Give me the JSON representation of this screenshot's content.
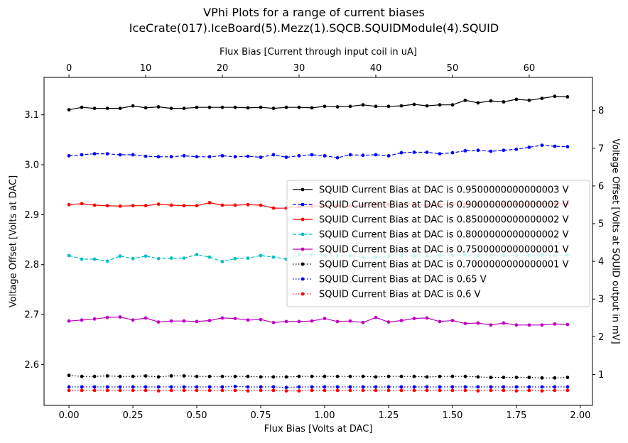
{
  "chart_data": {
    "type": "line",
    "title": "VPhi Plots for a range of current biases",
    "subtitle": "IceCrate(017).IceBoard(5).Mezz(1).SQCB.SQUIDModule(4).SQUID",
    "xlabel": "Flux Bias [Volts at DAC]",
    "ylabel": "Voltage Offset [Volts at DAC]",
    "x2label": "Flux Bias [Current through input coil in uA]",
    "y2label": "Voltage Offset [Volts at SQUID output in mV]",
    "xlim": [
      -0.0975,
      2.0475
    ],
    "ylim": [
      2.518,
      3.175
    ],
    "y2lim": [
      0.18,
      8.88
    ],
    "x2lim": [
      -3.25,
      68.25
    ],
    "xticks": [
      "0.00",
      "0.25",
      "0.50",
      "0.75",
      "1.00",
      "1.25",
      "1.50",
      "1.75",
      "2.00"
    ],
    "yticks": [
      "2.6",
      "2.7",
      "2.8",
      "2.9",
      "3.0",
      "3.1"
    ],
    "x2ticks": [
      "0",
      "10",
      "20",
      "30",
      "40",
      "50",
      "60"
    ],
    "y2ticks": [
      "1",
      "2",
      "3",
      "4",
      "5",
      "6",
      "7",
      "8"
    ],
    "grid": false,
    "legend_position": "center-right",
    "x": [
      0,
      0.05,
      0.1,
      0.15,
      0.2,
      0.25,
      0.3,
      0.35,
      0.4,
      0.45,
      0.5,
      0.55,
      0.6,
      0.65,
      0.7,
      0.75,
      0.8,
      0.85,
      0.9,
      0.95,
      1.0,
      1.05,
      1.1,
      1.15,
      1.2,
      1.25,
      1.3,
      1.35,
      1.4,
      1.45,
      1.5,
      1.55,
      1.6,
      1.65,
      1.7,
      1.75,
      1.8,
      1.85,
      1.9,
      1.95
    ],
    "series": [
      {
        "name": "SQUID Current Bias at DAC is 0.9500000000000003 V",
        "color": "#000000",
        "dash": "solid",
        "values": [
          3.11,
          3.115,
          3.113,
          3.113,
          3.113,
          3.118,
          3.114,
          3.116,
          3.113,
          3.113,
          3.115,
          3.115,
          3.115,
          3.115,
          3.114,
          3.115,
          3.113,
          3.115,
          3.115,
          3.114,
          3.117,
          3.116,
          3.117,
          3.12,
          3.117,
          3.117,
          3.118,
          3.121,
          3.118,
          3.12,
          3.12,
          3.129,
          3.124,
          3.128,
          3.126,
          3.131,
          3.129,
          3.133,
          3.137,
          3.136
        ]
      },
      {
        "name": "SQUID Current Bias at DAC is 0.9000000000000002 V",
        "color": "#0000ff",
        "dash": "dashed",
        "values": [
          3.018,
          3.02,
          3.022,
          3.022,
          3.02,
          3.02,
          3.017,
          3.016,
          3.016,
          3.018,
          3.016,
          3.016,
          3.018,
          3.016,
          3.017,
          3.015,
          3.02,
          3.015,
          3.018,
          3.02,
          3.018,
          3.014,
          3.02,
          3.019,
          3.02,
          3.018,
          3.024,
          3.025,
          3.025,
          3.022,
          3.024,
          3.028,
          3.029,
          3.027,
          3.029,
          3.031,
          3.035,
          3.039,
          3.037,
          3.036
        ]
      },
      {
        "name": "SQUID Current Bias at DAC is 0.8500000000000002 V",
        "color": "#ff0000",
        "dash": "solid",
        "values": [
          2.92,
          2.922,
          2.919,
          2.918,
          2.917,
          2.918,
          2.918,
          2.921,
          2.919,
          2.918,
          2.918,
          2.924,
          2.919,
          2.919,
          2.92,
          2.919,
          2.913,
          2.913,
          2.916,
          2.917,
          2.918,
          2.918,
          2.917,
          2.919,
          2.92,
          2.92,
          2.92,
          2.92,
          2.919,
          2.92,
          2.92,
          2.921,
          2.92,
          2.92,
          2.921,
          2.921,
          2.921,
          2.922,
          2.922,
          2.922
        ]
      },
      {
        "name": "SQUID Current Bias at DAC is 0.8000000000000002 V",
        "color": "#00bfbf",
        "dash": "dashed",
        "values": [
          2.818,
          2.811,
          2.811,
          2.807,
          2.817,
          2.812,
          2.817,
          2.812,
          2.813,
          2.813,
          2.82,
          2.815,
          2.806,
          2.812,
          2.813,
          2.818,
          2.815,
          2.811,
          2.82,
          2.82,
          2.818,
          2.817,
          2.818,
          2.815,
          2.815,
          2.817,
          2.818,
          2.817,
          2.817,
          2.818,
          2.818,
          2.819,
          2.817,
          2.818,
          2.818,
          2.818,
          2.818,
          2.819,
          2.818,
          2.819
        ]
      },
      {
        "name": "SQUID Current Bias at DAC is 0.7500000000000001 V",
        "color": "#bf00bf",
        "dash": "solid",
        "values": [
          2.687,
          2.689,
          2.691,
          2.694,
          2.695,
          2.689,
          2.693,
          2.685,
          2.687,
          2.687,
          2.686,
          2.688,
          2.693,
          2.692,
          2.689,
          2.69,
          2.684,
          2.686,
          2.686,
          2.687,
          2.692,
          2.686,
          2.687,
          2.684,
          2.694,
          2.685,
          2.688,
          2.692,
          2.693,
          2.686,
          2.688,
          2.682,
          2.683,
          2.679,
          2.683,
          2.679,
          2.679,
          2.679,
          2.681,
          2.68
        ]
      },
      {
        "name": "SQUID Current Bias at DAC is 0.7000000000000001 V",
        "color": "#000000",
        "dash": "dotted",
        "values": [
          2.578,
          2.576,
          2.576,
          2.577,
          2.576,
          2.576,
          2.577,
          2.575,
          2.577,
          2.577,
          2.576,
          2.576,
          2.576,
          2.576,
          2.576,
          2.575,
          2.575,
          2.575,
          2.576,
          2.576,
          2.576,
          2.576,
          2.576,
          2.576,
          2.575,
          2.576,
          2.576,
          2.576,
          2.575,
          2.576,
          2.576,
          2.576,
          2.575,
          2.574,
          2.574,
          2.574,
          2.574,
          2.573,
          2.573,
          2.574
        ]
      },
      {
        "name": "SQUID Current Bias at DAC is 0.65 V",
        "color": "#0000ff",
        "dash": "dotted",
        "values": [
          2.555,
          2.555,
          2.555,
          2.555,
          2.555,
          2.555,
          2.555,
          2.555,
          2.555,
          2.555,
          2.555,
          2.555,
          2.555,
          2.556,
          2.555,
          2.555,
          2.555,
          2.554,
          2.555,
          2.555,
          2.555,
          2.555,
          2.555,
          2.555,
          2.555,
          2.555,
          2.555,
          2.555,
          2.555,
          2.555,
          2.555,
          2.555,
          2.555,
          2.555,
          2.555,
          2.555,
          2.555,
          2.555,
          2.555,
          2.555
        ]
      },
      {
        "name": "SQUID Current Bias at DAC is 0.6 V",
        "color": "#ff0000",
        "dash": "dotted",
        "values": [
          2.548,
          2.548,
          2.548,
          2.548,
          2.548,
          2.548,
          2.548,
          2.547,
          2.548,
          2.548,
          2.548,
          2.548,
          2.548,
          2.548,
          2.547,
          2.548,
          2.548,
          2.547,
          2.547,
          2.548,
          2.548,
          2.548,
          2.548,
          2.548,
          2.548,
          2.548,
          2.548,
          2.548,
          2.548,
          2.548,
          2.548,
          2.548,
          2.547,
          2.548,
          2.548,
          2.547,
          2.548,
          2.547,
          2.548,
          2.548
        ]
      }
    ]
  }
}
